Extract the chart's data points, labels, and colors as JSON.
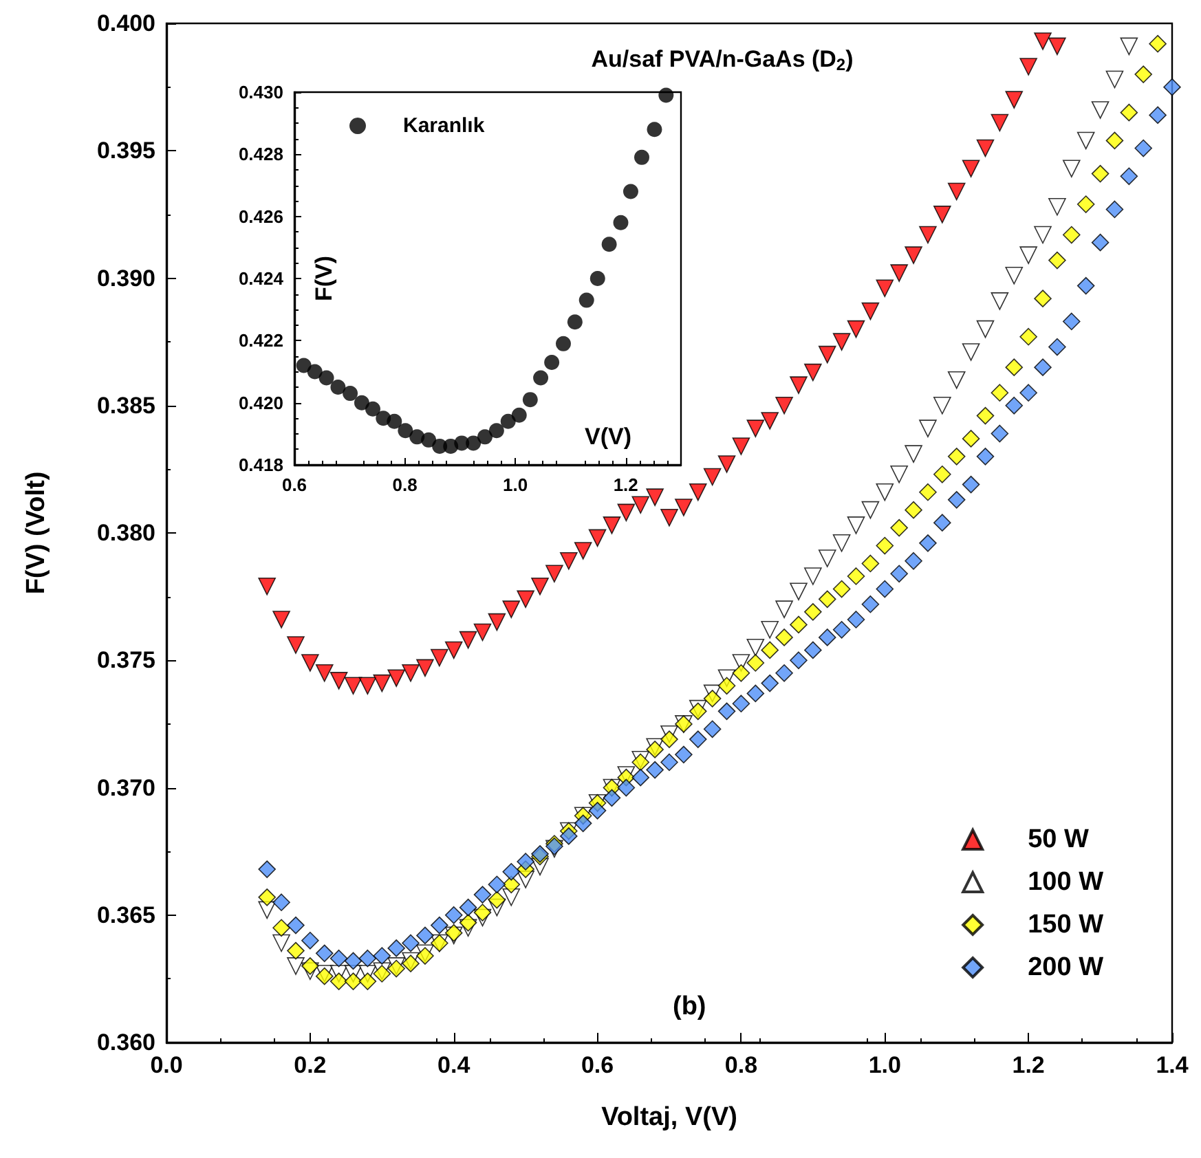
{
  "chart_data": [
    {
      "type": "scatter",
      "title": "Au/saf PVA/n-GaAs (D$_{2}$)",
      "xlabel": "Voltaj, V(V)",
      "ylabel": "F(V) (Volt)",
      "annotations": [
        "(b)"
      ],
      "legend": "bottom right",
      "xlim": [
        0,
        1.4
      ],
      "ylim": [
        0.36,
        0.4
      ],
      "xticks": [
        {
          "value": 0,
          "label": "0.0"
        },
        {
          "value": 0.2,
          "label": "0.2"
        },
        {
          "value": 0.4,
          "label": "0.4"
        },
        {
          "value": 0.6,
          "label": "0.6"
        },
        {
          "value": 0.8,
          "label": "0.8"
        },
        {
          "value": 1,
          "label": "1.0"
        },
        {
          "value": 1.2,
          "label": "1.2"
        },
        {
          "value": 1.4,
          "label": "1.4"
        }
      ],
      "yticks": [
        {
          "value": 0.36,
          "label": "0.360"
        },
        {
          "value": 0.365,
          "label": "0.365"
        },
        {
          "value": 0.37,
          "label": "0.370"
        },
        {
          "value": 0.375,
          "label": "0.375"
        },
        {
          "value": 0.38,
          "label": "0.380"
        },
        {
          "value": 0.385,
          "label": "0.385"
        },
        {
          "value": 0.39,
          "label": "0.390"
        },
        {
          "value": 0.395,
          "label": "0.395"
        },
        {
          "value": 0.4,
          "label": "0.400"
        }
      ],
      "x": [
        0.14,
        0.16,
        0.18,
        0.2,
        0.22,
        0.24,
        0.26,
        0.28,
        0.3,
        0.32,
        0.34,
        0.36,
        0.38,
        0.4,
        0.42,
        0.44,
        0.46,
        0.48,
        0.5,
        0.52,
        0.54,
        0.56,
        0.58,
        0.6,
        0.62,
        0.64,
        0.66,
        0.68,
        0.7,
        0.72,
        0.74,
        0.76,
        0.78,
        0.8,
        0.82,
        0.84,
        0.86,
        0.88,
        0.9,
        0.92,
        0.94,
        0.96,
        0.98,
        1.0,
        1.02,
        1.04,
        1.06,
        1.08,
        1.1,
        1.12,
        1.14,
        1.16,
        1.18,
        1.2,
        1.22,
        1.24,
        1.26,
        1.28,
        1.3,
        1.32,
        1.34,
        1.36,
        1.38,
        1.4
      ],
      "series": [
        {
          "name": "50 W",
          "color": "#ff0000",
          "marker": "triangle",
          "values": [
            0.3779,
            0.3766,
            0.3756,
            0.3749,
            0.3745,
            0.3742,
            0.374,
            0.374,
            0.3741,
            0.3743,
            0.3745,
            0.3747,
            0.3751,
            0.3754,
            0.3758,
            0.3761,
            0.3765,
            0.377,
            0.3774,
            0.3779,
            0.3784,
            0.3789,
            0.3793,
            0.3798,
            0.3803,
            0.3808,
            0.3811,
            0.3814,
            0.3806,
            0.381,
            0.3816,
            0.3822,
            0.3827,
            0.3834,
            0.3841,
            0.3844,
            0.385,
            0.3858,
            0.3863,
            0.387,
            0.3875,
            0.388,
            0.3887,
            0.3896,
            0.3902,
            0.3909,
            0.3917,
            0.3925,
            0.3934,
            0.3943,
            0.3951,
            0.3961,
            0.397,
            0.3983,
            0.3993,
            0.3991,
            null,
            null,
            null,
            null,
            null,
            null,
            null,
            null
          ]
        },
        {
          "name": "100 W",
          "color": "#ffffff",
          "marker": "triangle",
          "values": [
            0.3652,
            0.3639,
            0.363,
            0.3628,
            0.3627,
            0.3627,
            0.3627,
            0.3627,
            0.3628,
            0.363,
            0.3632,
            0.3635,
            0.3639,
            0.3642,
            0.3645,
            0.3649,
            0.3653,
            0.3657,
            0.3664,
            0.3669,
            0.3676,
            0.3683,
            0.3689,
            0.3694,
            0.37,
            0.3705,
            0.3711,
            0.3716,
            0.3721,
            0.3725,
            0.3731,
            0.3737,
            0.3743,
            0.3749,
            0.3755,
            0.3762,
            0.377,
            0.3777,
            0.3783,
            0.379,
            0.3796,
            0.3803,
            0.3809,
            0.3816,
            0.3823,
            0.3831,
            0.3841,
            0.385,
            0.386,
            0.3871,
            0.388,
            0.3891,
            0.3901,
            0.3909,
            0.3917,
            0.3928,
            0.3943,
            0.3954,
            0.3966,
            0.3978,
            0.3991,
            null,
            null,
            null
          ]
        },
        {
          "name": "150 W",
          "color": "#ffff00",
          "marker": "diamond",
          "values": [
            0.3657,
            0.3645,
            0.3636,
            0.363,
            0.3626,
            0.3624,
            0.3624,
            0.3624,
            0.3627,
            0.3629,
            0.3631,
            0.3634,
            0.3639,
            0.3643,
            0.3647,
            0.3651,
            0.3656,
            0.3662,
            0.3668,
            0.3673,
            0.3678,
            0.3683,
            0.3689,
            0.3694,
            0.37,
            0.3704,
            0.371,
            0.3715,
            0.3719,
            0.3725,
            0.373,
            0.3735,
            0.374,
            0.3745,
            0.3749,
            0.3754,
            0.3759,
            0.3764,
            0.3769,
            0.3774,
            0.3778,
            0.3783,
            0.3788,
            0.3795,
            0.3802,
            0.3809,
            0.3816,
            0.3823,
            0.383,
            0.3837,
            0.3846,
            0.3855,
            0.3865,
            0.3877,
            0.3892,
            0.3907,
            0.3917,
            0.3929,
            0.3941,
            0.3954,
            0.3965,
            0.398,
            0.3992,
            null
          ]
        },
        {
          "name": "200 W",
          "color": "#4f8ff7",
          "marker": "diamond",
          "values": [
            0.3668,
            0.3655,
            0.3646,
            0.364,
            0.3635,
            0.3633,
            0.3632,
            0.3633,
            0.3634,
            0.3637,
            0.3639,
            0.3642,
            0.3646,
            0.365,
            0.3653,
            0.3658,
            0.3662,
            0.3667,
            0.3671,
            0.3674,
            0.3677,
            0.3681,
            0.3686,
            0.3691,
            0.3696,
            0.37,
            0.3704,
            0.3707,
            0.371,
            0.3713,
            0.3719,
            0.3723,
            0.373,
            0.3733,
            0.3737,
            0.3741,
            0.3745,
            0.375,
            0.3754,
            0.3759,
            0.3762,
            0.3766,
            0.3772,
            0.3778,
            0.3784,
            0.3789,
            0.3796,
            0.3804,
            0.3813,
            0.3819,
            0.383,
            0.3839,
            0.385,
            0.3855,
            0.3865,
            0.3873,
            0.3883,
            0.3897,
            0.3914,
            0.3927,
            0.394,
            0.3951,
            0.3964,
            0.3975
          ]
        }
      ]
    },
    {
      "type": "scatter",
      "xlabel": "V(V)",
      "ylabel": "F(V)",
      "legend": "top left",
      "xlim": [
        0.6,
        1.3
      ],
      "ylim": [
        0.418,
        0.43
      ],
      "xticks": [
        {
          "value": 0.6,
          "label": "0.6"
        },
        {
          "value": 0.8,
          "label": "0.8"
        },
        {
          "value": 1,
          "label": "1.0"
        },
        {
          "value": 1.2,
          "label": "1.2"
        }
      ],
      "yticks": [
        {
          "value": 0.418,
          "label": "0.418"
        },
        {
          "value": 0.42,
          "label": "0.420"
        },
        {
          "value": 0.422,
          "label": "0.422"
        },
        {
          "value": 0.424,
          "label": "0.424"
        },
        {
          "value": 0.426,
          "label": "0.426"
        },
        {
          "value": 0.428,
          "label": "0.428"
        },
        {
          "value": 0.43,
          "label": "0.430"
        }
      ],
      "x": [
        0.617,
        0.637,
        0.658,
        0.679,
        0.701,
        0.722,
        0.742,
        0.761,
        0.781,
        0.801,
        0.822,
        0.843,
        0.863,
        0.883,
        0.903,
        0.924,
        0.945,
        0.966,
        0.987,
        1.007,
        1.027,
        1.046,
        1.066,
        1.087,
        1.108,
        1.129,
        1.149,
        1.17,
        1.191,
        1.209,
        1.229,
        1.252,
        1.273
      ],
      "series": [
        {
          "name": "Karanlık",
          "color": "#000000",
          "marker": "circle",
          "values": [
            0.4212,
            0.421,
            0.4208,
            0.4205,
            0.4203,
            0.42,
            0.4198,
            0.4195,
            0.4194,
            0.4191,
            0.4189,
            0.4188,
            0.4186,
            0.4186,
            0.4187,
            0.4187,
            0.4189,
            0.4191,
            0.4194,
            0.4196,
            0.4201,
            0.4208,
            0.4213,
            0.4219,
            0.4226,
            0.4233,
            0.424,
            0.4251,
            0.4258,
            0.4268,
            0.4279,
            0.4288,
            0.4299
          ]
        }
      ]
    }
  ]
}
